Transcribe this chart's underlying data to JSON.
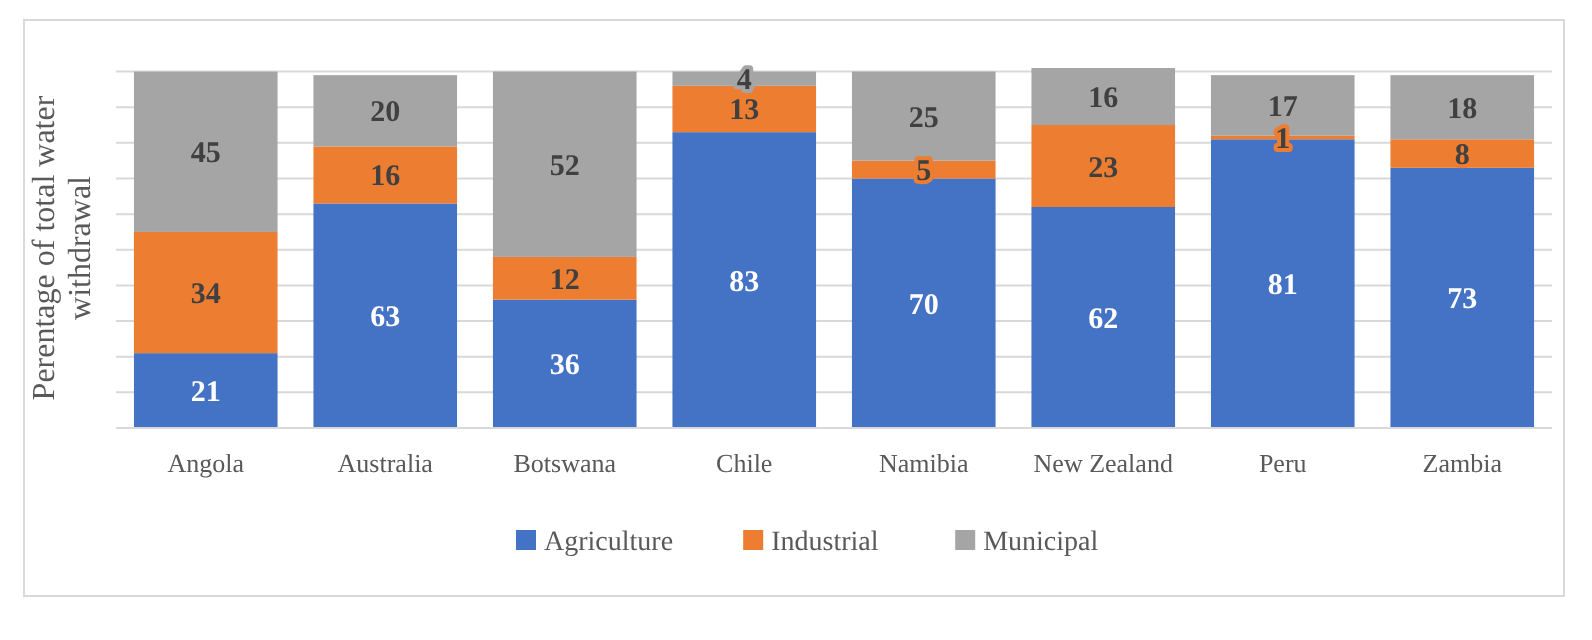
{
  "chart_data": {
    "type": "bar",
    "stacked": true,
    "ylabel": "Perentage of total water withdrawal",
    "categories": [
      "Angola",
      "Australia",
      "Botswana",
      "Chile",
      "Namibia",
      "New Zealand",
      "Peru",
      "Zambia"
    ],
    "series": [
      {
        "name": "Agriculture",
        "color": "#4472c4",
        "values": [
          21,
          63,
          36,
          83,
          70,
          62,
          81,
          73
        ]
      },
      {
        "name": "Industrial",
        "color": "#ed7d31",
        "values": [
          34,
          16,
          12,
          13,
          5,
          23,
          1,
          8
        ]
      },
      {
        "name": "Municipal",
        "color": "#a5a5a5",
        "values": [
          45,
          20,
          52,
          4,
          25,
          16,
          17,
          18
        ]
      }
    ],
    "ylim": [
      0,
      101
    ],
    "yticks": [
      {
        "value": 0,
        "label": null
      },
      {
        "value": 10,
        "label": null
      },
      {
        "value": 20,
        "label": null
      },
      {
        "value": 30,
        "label": null
      },
      {
        "value": 40,
        "label": null
      },
      {
        "value": 50,
        "label": null
      },
      {
        "value": 60,
        "label": null
      },
      {
        "value": 70,
        "label": null
      },
      {
        "value": 80,
        "label": null
      },
      {
        "value": 90,
        "label": null
      },
      {
        "value": 100,
        "label": null
      }
    ],
    "tick_labels": "x",
    "grid": "y",
    "legend": "bottom",
    "data_labels": true
  }
}
